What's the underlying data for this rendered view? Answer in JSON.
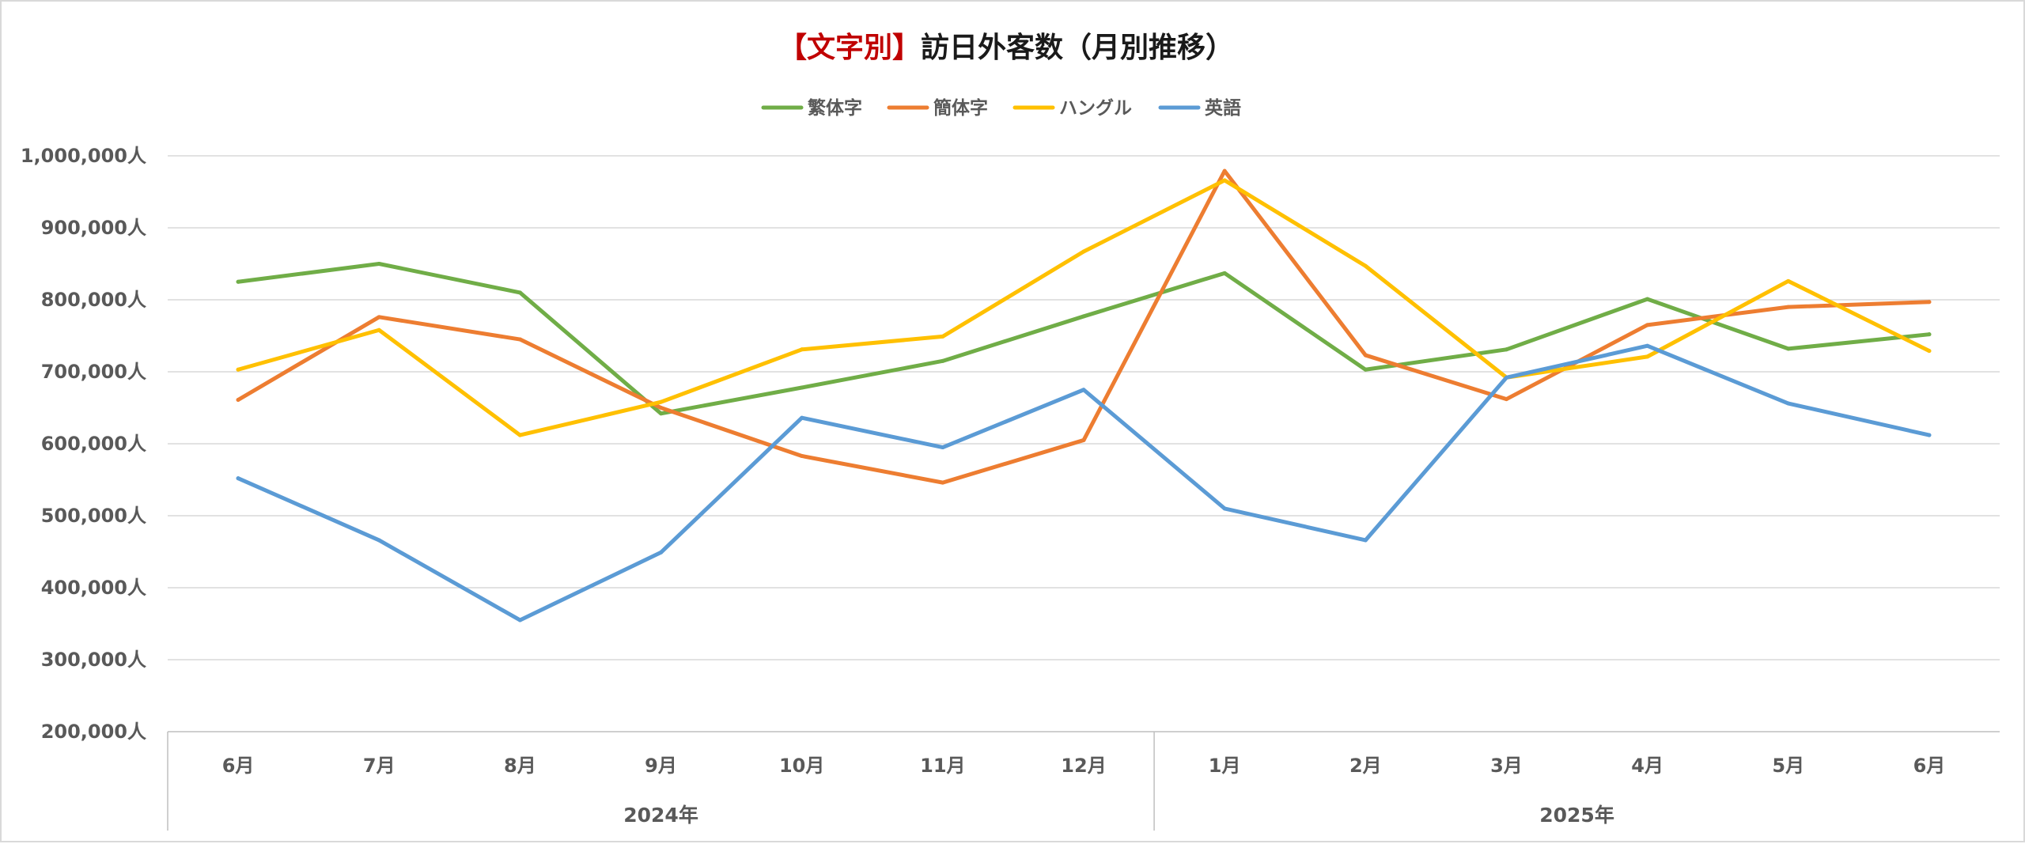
{
  "chart_data": {
    "type": "line",
    "title_accent": "【文字別】",
    "title_main": "訪日外客数（月別推移）",
    "y_tick_labels": [
      "1,000,000人",
      "900,000人",
      "800,000人",
      "700,000人",
      "600,000人",
      "500,000人",
      "400,000人",
      "300,000人",
      "200,000人"
    ],
    "y_ticks": [
      1000000,
      900000,
      800000,
      700000,
      600000,
      500000,
      400000,
      300000,
      200000
    ],
    "ylim": [
      200000,
      1000000
    ],
    "categories": [
      "6月",
      "7月",
      "8月",
      "9月",
      "10月",
      "11月",
      "12月",
      "1月",
      "2月",
      "3月",
      "4月",
      "5月",
      "6月"
    ],
    "year_groups": [
      {
        "label": "2024年",
        "start": 0,
        "end": 6
      },
      {
        "label": "2025年",
        "start": 7,
        "end": 12
      }
    ],
    "grid": true,
    "legend_position": "top-center",
    "series": [
      {
        "name": "繁体字",
        "color": "#70ad47",
        "values": [
          825000,
          850000,
          810000,
          642000,
          678000,
          715000,
          777000,
          837000,
          703000,
          731000,
          801000,
          732000,
          752000
        ]
      },
      {
        "name": "簡体字",
        "color": "#ed7d31",
        "values": [
          661000,
          776000,
          745000,
          650000,
          583000,
          546000,
          605000,
          979000,
          723000,
          662000,
          765000,
          790000,
          797000
        ]
      },
      {
        "name": "ハングル",
        "color": "#ffc000",
        "values": [
          703000,
          758000,
          612000,
          658000,
          731000,
          749000,
          867000,
          966000,
          847000,
          692000,
          721000,
          826000,
          729000
        ]
      },
      {
        "name": "英語",
        "color": "#5b9bd5",
        "values": [
          552000,
          466000,
          355000,
          449000,
          636000,
          595000,
          675000,
          510000,
          466000,
          692000,
          736000,
          656000,
          612000
        ]
      }
    ]
  }
}
